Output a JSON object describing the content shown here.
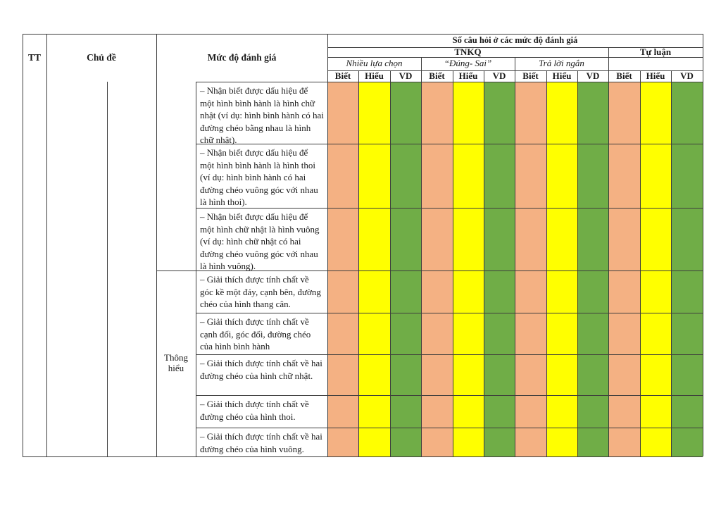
{
  "table": {
    "corner": {
      "tt": "TT",
      "chu_de": "Chủ đề",
      "muc_do_danh_gia": "Mức độ đánh giá"
    },
    "header": {
      "title": "Số câu hỏi ở các mức độ đánh giá",
      "tnkq": "TNKQ",
      "tu_luan": "Tự luận",
      "question_groups": [
        "Nhiều lựa chọn",
        "“Đúng- Sai”",
        "Trả lời ngắn"
      ],
      "levels": [
        "Biết",
        "Hiểu",
        "VD"
      ]
    },
    "body": {
      "level_label": "Thông hiểu",
      "rows": [
        {
          "text": "– Nhận biết được dấu hiệu để một hình bình hành là hình chữ nhật (ví dụ: hình bình hành có hai đường chéo bằng nhau là hình chữ nhật)."
        },
        {
          "text": "– Nhận biết được dấu hiệu để một hình bình hành là hình thoi (ví dụ: hình bình hành có hai đường chéo vuông góc với nhau là hình thoi)."
        },
        {
          "text": "– Nhận biết được dấu hiệu để một hình chữ nhật là hình vuông (ví dụ: hình chữ nhật có hai đường chéo vuông góc với nhau là hình vuông)."
        },
        {
          "text": "– Giải thích được tính chất về góc kề một đáy, cạnh bên, đường chéo của hình thang cân."
        },
        {
          "text": "– Giải thích được tính chất về cạnh đối, góc đối, đường chéo của hình bình hành"
        },
        {
          "text": "– Giải thích được tính chất về hai đường chéo của hình chữ nhật."
        },
        {
          "text": "– Giải thích được tính chất về đường chéo của hình thoi."
        },
        {
          "text": "– Giải thích được tính chất về hai đường chéo của hình vuông."
        }
      ]
    }
  },
  "colors": {
    "biet": "#F4B183",
    "hieu": "#FFFF00",
    "vd": "#70AD47",
    "border": "#3d3d3d"
  }
}
